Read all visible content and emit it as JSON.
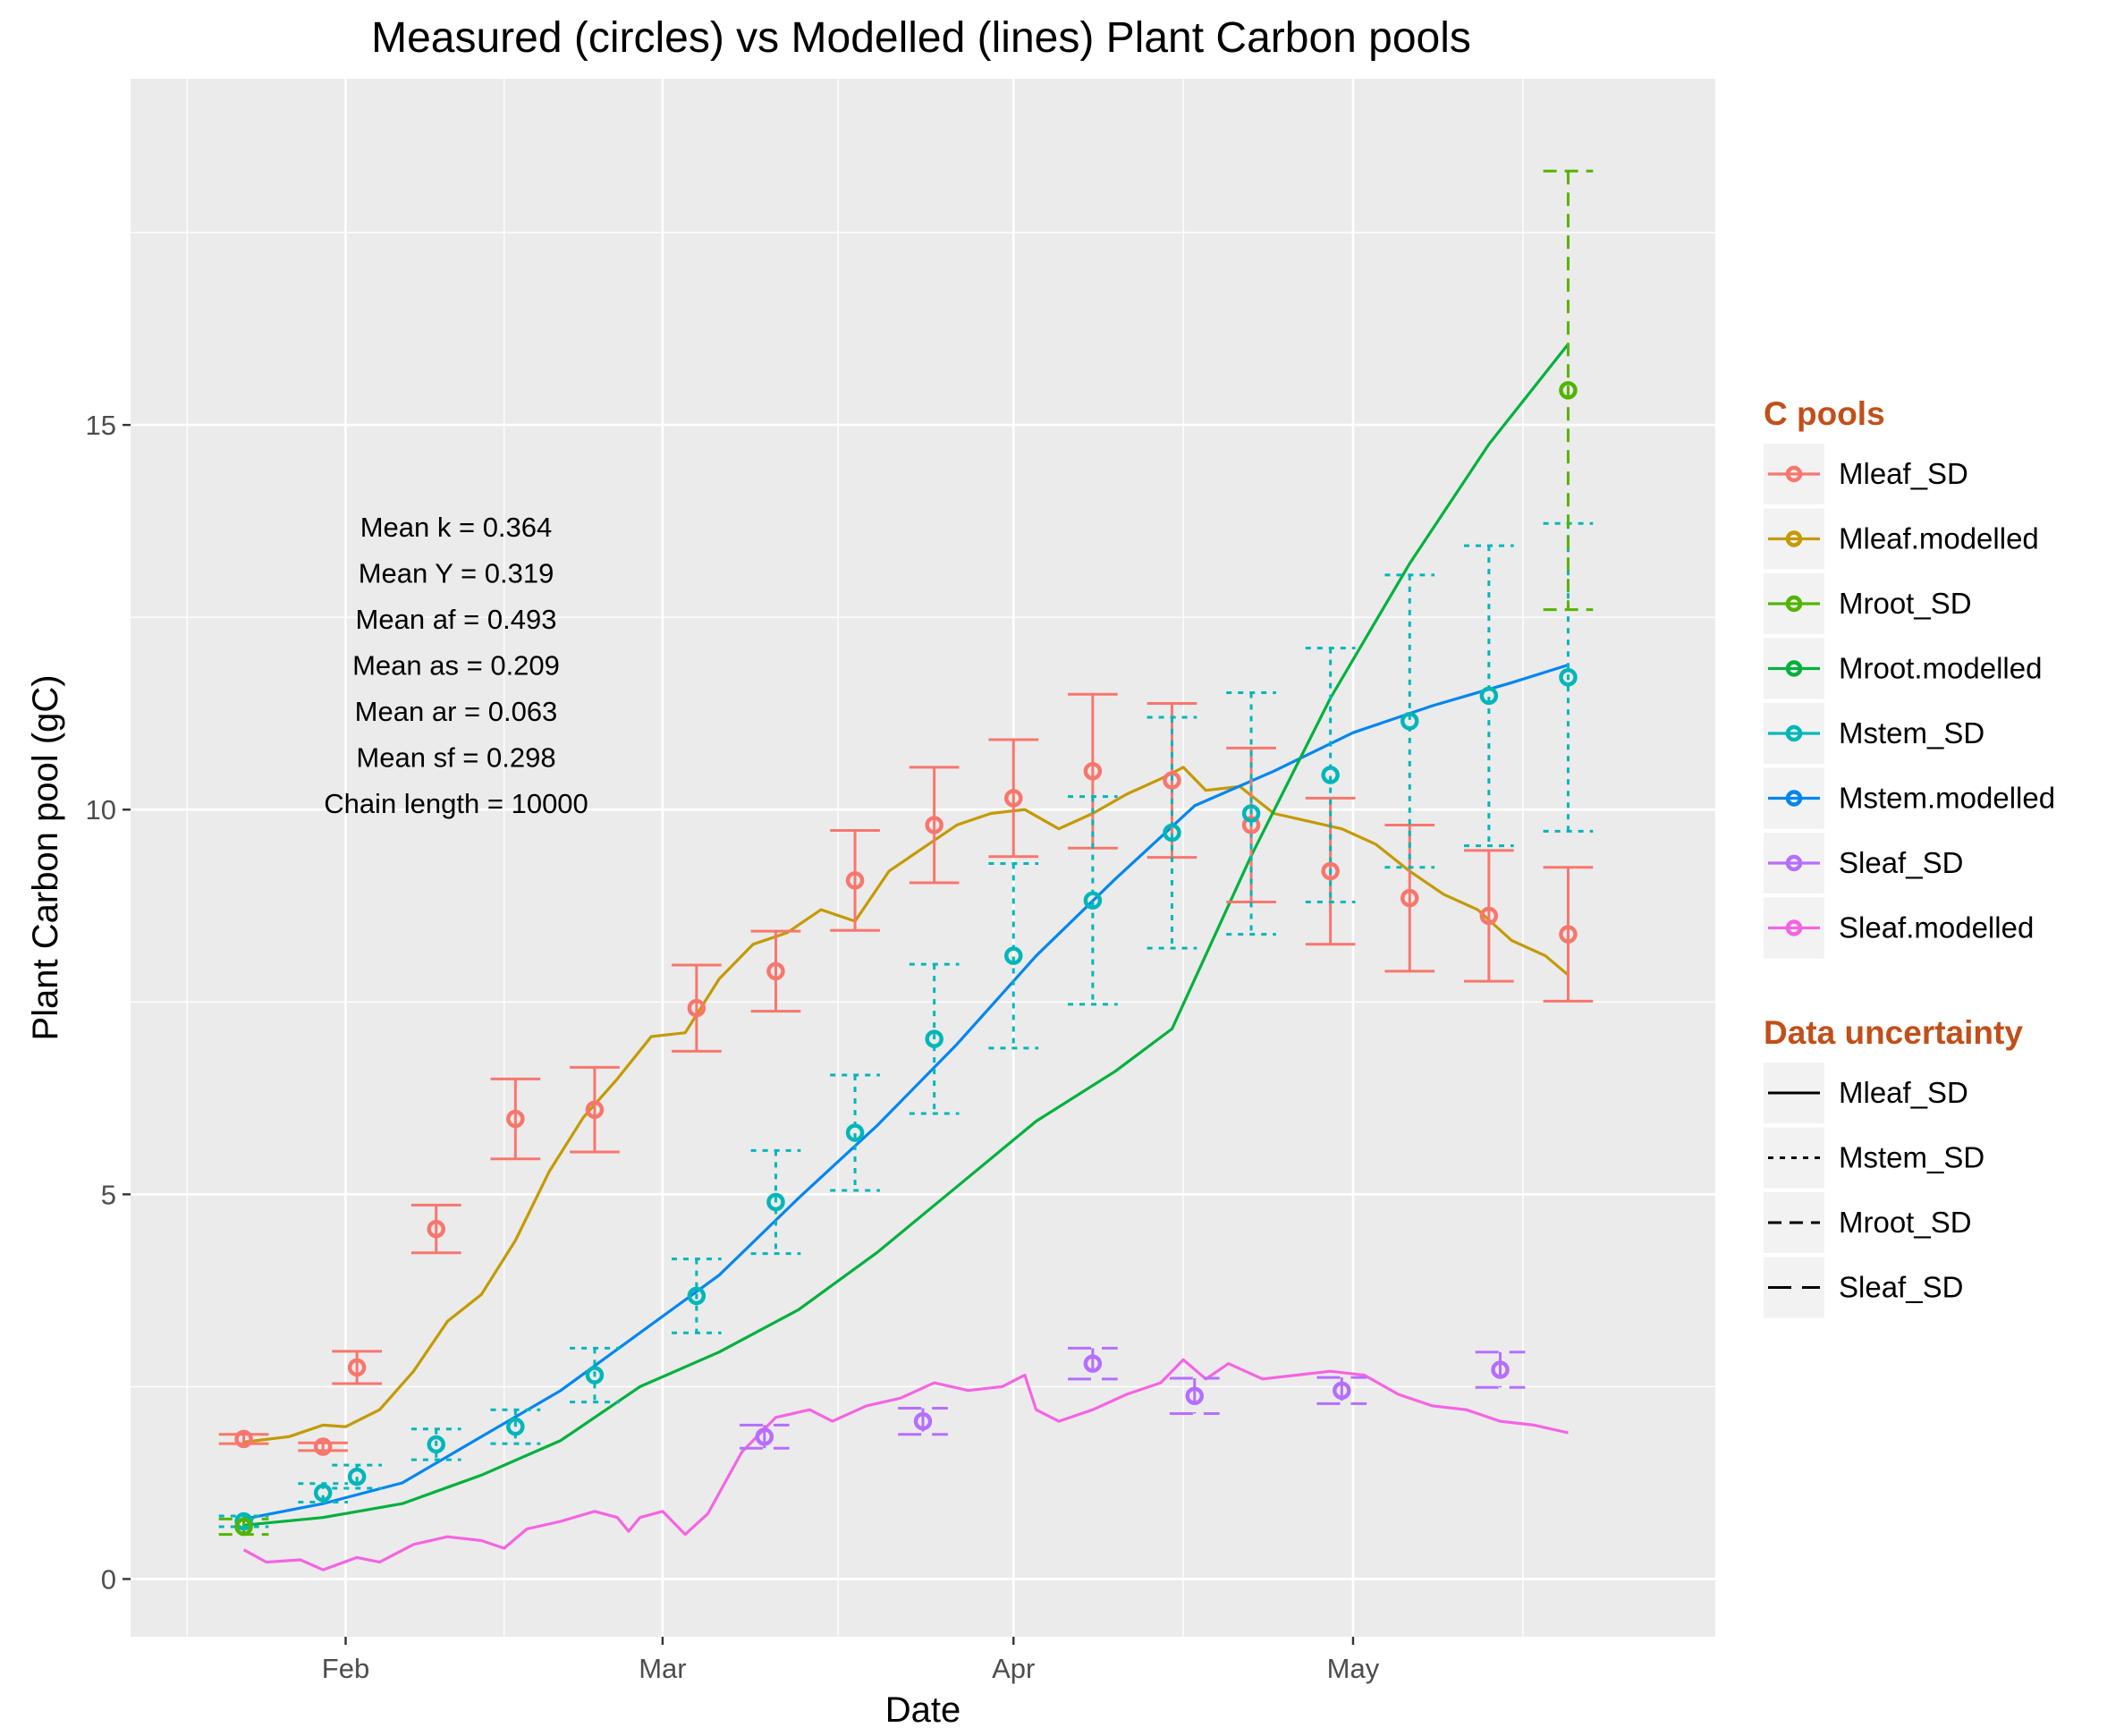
{
  "chart_data": {
    "type": "line",
    "title": "Measured (circles) vs Modelled (lines) Plant Carbon pools",
    "xlabel": "Date",
    "ylabel": "Plant Carbon pool (gC)",
    "x_ticks": [
      {
        "label": "Feb",
        "date": "2013-02-01"
      },
      {
        "label": "Mar",
        "date": "2013-03-01"
      },
      {
        "label": "Apr",
        "date": "2013-04-01"
      },
      {
        "label": "May",
        "date": "2013-05-01"
      }
    ],
    "y_ticks": [
      0,
      5,
      10,
      15
    ],
    "xlim": [
      "2013-01-13",
      "2013-06-02"
    ],
    "ylim": [
      -0.75,
      19.5
    ],
    "grid": true,
    "legend": {
      "placement": "right",
      "pools_title": "C pools",
      "pools": [
        {
          "name": "Mleaf_SD",
          "color": "#F8766D",
          "point": true
        },
        {
          "name": "Mleaf.modelled",
          "color": "#C49A00",
          "point": true
        },
        {
          "name": "Mroot_SD",
          "color": "#53B400",
          "point": true
        },
        {
          "name": "Mroot.modelled",
          "color": "#00B13C",
          "point": true
        },
        {
          "name": "Mstem_SD",
          "color": "#00B6B9",
          "point": true
        },
        {
          "name": "Mstem.modelled",
          "color": "#0086F0",
          "point": true
        },
        {
          "name": "Sleaf_SD",
          "color": "#B66EFF",
          "point": true
        },
        {
          "name": "Sleaf.modelled",
          "color": "#F564E3",
          "point": true
        }
      ],
      "uncertainty_title": "Data uncertainty",
      "uncertainty": [
        {
          "name": "Mleaf_SD",
          "dash": "solid"
        },
        {
          "name": "Mstem_SD",
          "dash": "dotted"
        },
        {
          "name": "Mroot_SD",
          "dash": "dashed"
        },
        {
          "name": "Sleaf_SD",
          "dash": "longdash"
        }
      ]
    },
    "annotations": [
      "Mean k =  0.364",
      "Mean Y =  0.319",
      "Mean af =  0.493",
      "Mean as =  0.209",
      "Mean ar =  0.063",
      "Mean sf =  0.298",
      "Chain length =  10000"
    ],
    "measured": [
      {
        "pool": "Mleaf_SD",
        "color": "#F8766D",
        "dash": "solid",
        "points": [
          {
            "date": "2013-01-23",
            "y": 1.82,
            "sd": 0.06
          },
          {
            "date": "2013-01-30",
            "y": 1.72,
            "sd": 0.05
          },
          {
            "date": "2013-02-02",
            "y": 2.75,
            "sd": 0.21
          },
          {
            "date": "2013-02-09",
            "y": 4.55,
            "sd": 0.31
          },
          {
            "date": "2013-02-16",
            "y": 5.98,
            "sd": 0.52
          },
          {
            "date": "2013-02-23",
            "y": 6.1,
            "sd": 0.55
          },
          {
            "date": "2013-03-04",
            "y": 7.42,
            "sd": 0.56
          },
          {
            "date": "2013-03-11",
            "y": 7.9,
            "sd": 0.52
          },
          {
            "date": "2013-03-18",
            "y": 9.08,
            "sd": 0.65
          },
          {
            "date": "2013-03-25",
            "y": 9.8,
            "sd": 0.75
          },
          {
            "date": "2013-04-01",
            "y": 10.15,
            "sd": 0.76
          },
          {
            "date": "2013-04-08",
            "y": 10.5,
            "sd": 1.0
          },
          {
            "date": "2013-04-15",
            "y": 10.38,
            "sd": 1.0
          },
          {
            "date": "2013-04-22",
            "y": 9.8,
            "sd": 1.0
          },
          {
            "date": "2013-04-29",
            "y": 9.2,
            "sd": 0.95
          },
          {
            "date": "2013-05-06",
            "y": 8.85,
            "sd": 0.95
          },
          {
            "date": "2013-05-13",
            "y": 8.62,
            "sd": 0.85
          },
          {
            "date": "2013-05-20",
            "y": 8.38,
            "sd": 0.87
          }
        ]
      },
      {
        "pool": "Mstem_SD",
        "color": "#00B6B9",
        "dash": "dotted",
        "points": [
          {
            "date": "2013-01-23",
            "y": 0.75,
            "sd": 0.07
          },
          {
            "date": "2013-01-30",
            "y": 1.12,
            "sd": 0.12
          },
          {
            "date": "2013-02-02",
            "y": 1.33,
            "sd": 0.15
          },
          {
            "date": "2013-02-09",
            "y": 1.75,
            "sd": 0.2
          },
          {
            "date": "2013-02-16",
            "y": 1.98,
            "sd": 0.22
          },
          {
            "date": "2013-02-23",
            "y": 2.65,
            "sd": 0.35
          },
          {
            "date": "2013-03-04",
            "y": 3.68,
            "sd": 0.48
          },
          {
            "date": "2013-03-11",
            "y": 4.9,
            "sd": 0.67
          },
          {
            "date": "2013-03-18",
            "y": 5.8,
            "sd": 0.75
          },
          {
            "date": "2013-03-25",
            "y": 7.02,
            "sd": 0.97
          },
          {
            "date": "2013-04-01",
            "y": 8.1,
            "sd": 1.2
          },
          {
            "date": "2013-04-08",
            "y": 8.82,
            "sd": 1.35
          },
          {
            "date": "2013-04-15",
            "y": 9.7,
            "sd": 1.5
          },
          {
            "date": "2013-04-22",
            "y": 9.95,
            "sd": 1.57
          },
          {
            "date": "2013-04-29",
            "y": 10.45,
            "sd": 1.65
          },
          {
            "date": "2013-05-06",
            "y": 11.15,
            "sd": 1.9
          },
          {
            "date": "2013-05-13",
            "y": 11.48,
            "sd": 1.95
          },
          {
            "date": "2013-05-20",
            "y": 11.72,
            "sd": 2.0
          }
        ]
      },
      {
        "pool": "Mroot_SD",
        "color": "#53B400",
        "dash": "dashed",
        "points": [
          {
            "date": "2013-01-23",
            "y": 0.68,
            "sd": 0.1
          },
          {
            "date": "2013-05-20",
            "y": 15.45,
            "sd": 2.85
          }
        ]
      },
      {
        "pool": "Sleaf_SD",
        "color": "#B66EFF",
        "dash": "longdash",
        "points": [
          {
            "date": "2013-03-10",
            "y": 1.85,
            "sd": 0.15
          },
          {
            "date": "2013-03-24",
            "y": 2.05,
            "sd": 0.17
          },
          {
            "date": "2013-04-08",
            "y": 2.8,
            "sd": 0.2
          },
          {
            "date": "2013-04-17",
            "y": 2.38,
            "sd": 0.23
          },
          {
            "date": "2013-04-30",
            "y": 2.45,
            "sd": 0.17
          },
          {
            "date": "2013-05-14",
            "y": 2.72,
            "sd": 0.23
          }
        ]
      }
    ],
    "modelled": [
      {
        "pool": "Mleaf.modelled",
        "color": "#C49A00",
        "points": [
          [
            "2013-01-23",
            1.78
          ],
          [
            "2013-01-27",
            1.85
          ],
          [
            "2013-01-30",
            2.0
          ],
          [
            "2013-02-01",
            1.98
          ],
          [
            "2013-02-04",
            2.2
          ],
          [
            "2013-02-07",
            2.7
          ],
          [
            "2013-02-10",
            3.35
          ],
          [
            "2013-02-13",
            3.7
          ],
          [
            "2013-02-16",
            4.4
          ],
          [
            "2013-02-19",
            5.3
          ],
          [
            "2013-02-22",
            6.0
          ],
          [
            "2013-02-25",
            6.5
          ],
          [
            "2013-02-28",
            7.05
          ],
          [
            "2013-03-03",
            7.1
          ],
          [
            "2013-03-06",
            7.8
          ],
          [
            "2013-03-09",
            8.25
          ],
          [
            "2013-03-12",
            8.4
          ],
          [
            "2013-03-15",
            8.7
          ],
          [
            "2013-03-18",
            8.55
          ],
          [
            "2013-03-21",
            9.2
          ],
          [
            "2013-03-24",
            9.5
          ],
          [
            "2013-03-27",
            9.8
          ],
          [
            "2013-03-30",
            9.95
          ],
          [
            "2013-04-02",
            10.0
          ],
          [
            "2013-04-05",
            9.75
          ],
          [
            "2013-04-08",
            9.95
          ],
          [
            "2013-04-11",
            10.2
          ],
          [
            "2013-04-14",
            10.4
          ],
          [
            "2013-04-16",
            10.55
          ],
          [
            "2013-04-18",
            10.25
          ],
          [
            "2013-04-21",
            10.3
          ],
          [
            "2013-04-24",
            9.95
          ],
          [
            "2013-04-27",
            9.85
          ],
          [
            "2013-04-30",
            9.75
          ],
          [
            "2013-05-03",
            9.55
          ],
          [
            "2013-05-06",
            9.2
          ],
          [
            "2013-05-09",
            8.9
          ],
          [
            "2013-05-12",
            8.7
          ],
          [
            "2013-05-15",
            8.3
          ],
          [
            "2013-05-18",
            8.1
          ],
          [
            "2013-05-20",
            7.85
          ]
        ]
      },
      {
        "pool": "Mstem.modelled",
        "color": "#0086F0",
        "points": [
          [
            "2013-01-23",
            0.78
          ],
          [
            "2013-01-30",
            0.98
          ],
          [
            "2013-02-06",
            1.25
          ],
          [
            "2013-02-13",
            1.85
          ],
          [
            "2013-02-20",
            2.45
          ],
          [
            "2013-02-27",
            3.2
          ],
          [
            "2013-03-06",
            3.95
          ],
          [
            "2013-03-13",
            4.95
          ],
          [
            "2013-03-20",
            5.9
          ],
          [
            "2013-03-27",
            6.95
          ],
          [
            "2013-04-03",
            8.1
          ],
          [
            "2013-04-10",
            9.1
          ],
          [
            "2013-04-17",
            10.05
          ],
          [
            "2013-04-24",
            10.5
          ],
          [
            "2013-05-01",
            11.0
          ],
          [
            "2013-05-08",
            11.35
          ],
          [
            "2013-05-15",
            11.65
          ],
          [
            "2013-05-20",
            11.88
          ]
        ]
      },
      {
        "pool": "Mroot.modelled",
        "color": "#00B13C",
        "points": [
          [
            "2013-01-23",
            0.7
          ],
          [
            "2013-01-30",
            0.8
          ],
          [
            "2013-02-06",
            0.98
          ],
          [
            "2013-02-13",
            1.35
          ],
          [
            "2013-02-20",
            1.8
          ],
          [
            "2013-02-27",
            2.5
          ],
          [
            "2013-03-06",
            2.95
          ],
          [
            "2013-03-13",
            3.5
          ],
          [
            "2013-03-20",
            4.25
          ],
          [
            "2013-03-27",
            5.1
          ],
          [
            "2013-04-03",
            5.95
          ],
          [
            "2013-04-10",
            6.6
          ],
          [
            "2013-04-15",
            7.15
          ],
          [
            "2013-04-22",
            9.4
          ],
          [
            "2013-04-29",
            11.45
          ],
          [
            "2013-05-06",
            13.2
          ],
          [
            "2013-05-13",
            14.75
          ],
          [
            "2013-05-20",
            16.05
          ]
        ]
      },
      {
        "pool": "Sleaf.modelled",
        "color": "#F564E3",
        "points": [
          [
            "2013-01-23",
            0.38
          ],
          [
            "2013-01-25",
            0.22
          ],
          [
            "2013-01-28",
            0.25
          ],
          [
            "2013-01-30",
            0.12
          ],
          [
            "2013-02-02",
            0.28
          ],
          [
            "2013-02-04",
            0.22
          ],
          [
            "2013-02-07",
            0.45
          ],
          [
            "2013-02-10",
            0.55
          ],
          [
            "2013-02-13",
            0.5
          ],
          [
            "2013-02-15",
            0.4
          ],
          [
            "2013-02-17",
            0.65
          ],
          [
            "2013-02-20",
            0.75
          ],
          [
            "2013-02-23",
            0.88
          ],
          [
            "2013-02-25",
            0.8
          ],
          [
            "2013-02-26",
            0.62
          ],
          [
            "2013-02-27",
            0.8
          ],
          [
            "2013-03-01",
            0.88
          ],
          [
            "2013-03-03",
            0.58
          ],
          [
            "2013-03-05",
            0.85
          ],
          [
            "2013-03-08",
            1.65
          ],
          [
            "2013-03-11",
            2.1
          ],
          [
            "2013-03-14",
            2.2
          ],
          [
            "2013-03-16",
            2.05
          ],
          [
            "2013-03-19",
            2.25
          ],
          [
            "2013-03-22",
            2.35
          ],
          [
            "2013-03-25",
            2.55
          ],
          [
            "2013-03-28",
            2.45
          ],
          [
            "2013-03-31",
            2.5
          ],
          [
            "2013-04-02",
            2.65
          ],
          [
            "2013-04-03",
            2.2
          ],
          [
            "2013-04-05",
            2.05
          ],
          [
            "2013-04-08",
            2.2
          ],
          [
            "2013-04-11",
            2.4
          ],
          [
            "2013-04-14",
            2.55
          ],
          [
            "2013-04-16",
            2.85
          ],
          [
            "2013-04-18",
            2.6
          ],
          [
            "2013-04-20",
            2.8
          ],
          [
            "2013-04-23",
            2.6
          ],
          [
            "2013-04-26",
            2.65
          ],
          [
            "2013-04-29",
            2.7
          ],
          [
            "2013-05-02",
            2.65
          ],
          [
            "2013-05-05",
            2.4
          ],
          [
            "2013-05-08",
            2.25
          ],
          [
            "2013-05-11",
            2.2
          ],
          [
            "2013-05-14",
            2.05
          ],
          [
            "2013-05-17",
            2.0
          ],
          [
            "2013-05-20",
            1.9
          ]
        ]
      }
    ]
  }
}
